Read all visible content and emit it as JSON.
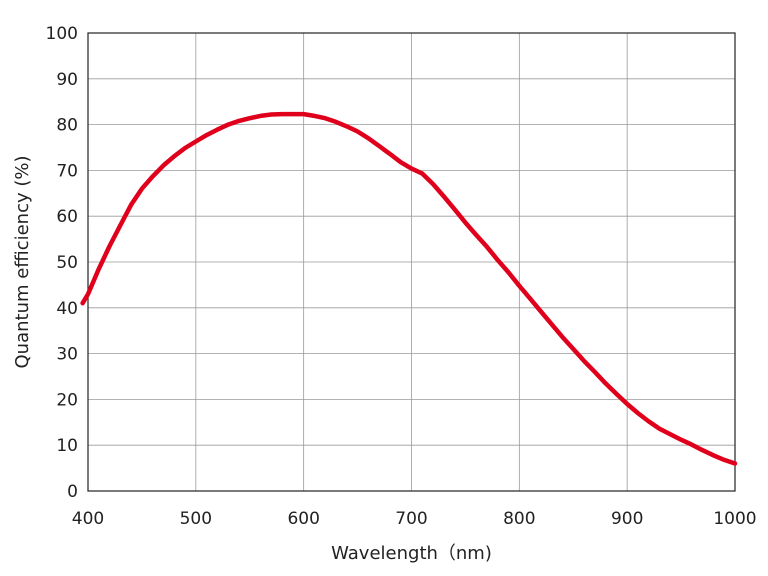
{
  "chart_data": {
    "type": "line",
    "title": "",
    "xlabel": "Wavelength（nm)",
    "ylabel": "Quantum efficiency (%)",
    "xlim": [
      400,
      1000
    ],
    "ylim": [
      0,
      100
    ],
    "x_ticks": [
      400,
      500,
      600,
      700,
      800,
      900,
      1000
    ],
    "y_ticks": [
      0,
      10,
      20,
      30,
      40,
      50,
      60,
      70,
      80,
      90,
      100
    ],
    "grid": true,
    "series": [
      {
        "color": "#e0001b",
        "x": [
          395,
          400,
          410,
          420,
          430,
          440,
          450,
          460,
          470,
          480,
          490,
          500,
          510,
          520,
          530,
          540,
          550,
          560,
          570,
          580,
          590,
          600,
          610,
          620,
          630,
          640,
          650,
          660,
          670,
          680,
          690,
          700,
          710,
          720,
          730,
          740,
          750,
          760,
          770,
          780,
          790,
          800,
          810,
          820,
          830,
          840,
          850,
          860,
          870,
          880,
          890,
          900,
          910,
          920,
          930,
          940,
          950,
          960,
          970,
          980,
          990,
          1000
        ],
        "y": [
          41,
          43,
          48.5,
          53.5,
          58,
          62.5,
          66,
          68.7,
          71.1,
          73.1,
          74.9,
          76.3,
          77.7,
          78.9,
          80,
          80.8,
          81.4,
          81.9,
          82.2,
          82.3,
          82.3,
          82.3,
          81.9,
          81.4,
          80.6,
          79.6,
          78.5,
          77,
          75.3,
          73.6,
          71.8,
          70.4,
          69.3,
          67,
          64.3,
          61.5,
          58.6,
          55.9,
          53.3,
          50.4,
          47.7,
          44.8,
          42,
          39.2,
          36.4,
          33.6,
          31,
          28.4,
          26,
          23.5,
          21.2,
          19,
          17,
          15.2,
          13.6,
          12.4,
          11.2,
          10.1,
          8.9,
          7.8,
          6.8,
          6
        ]
      }
    ]
  }
}
